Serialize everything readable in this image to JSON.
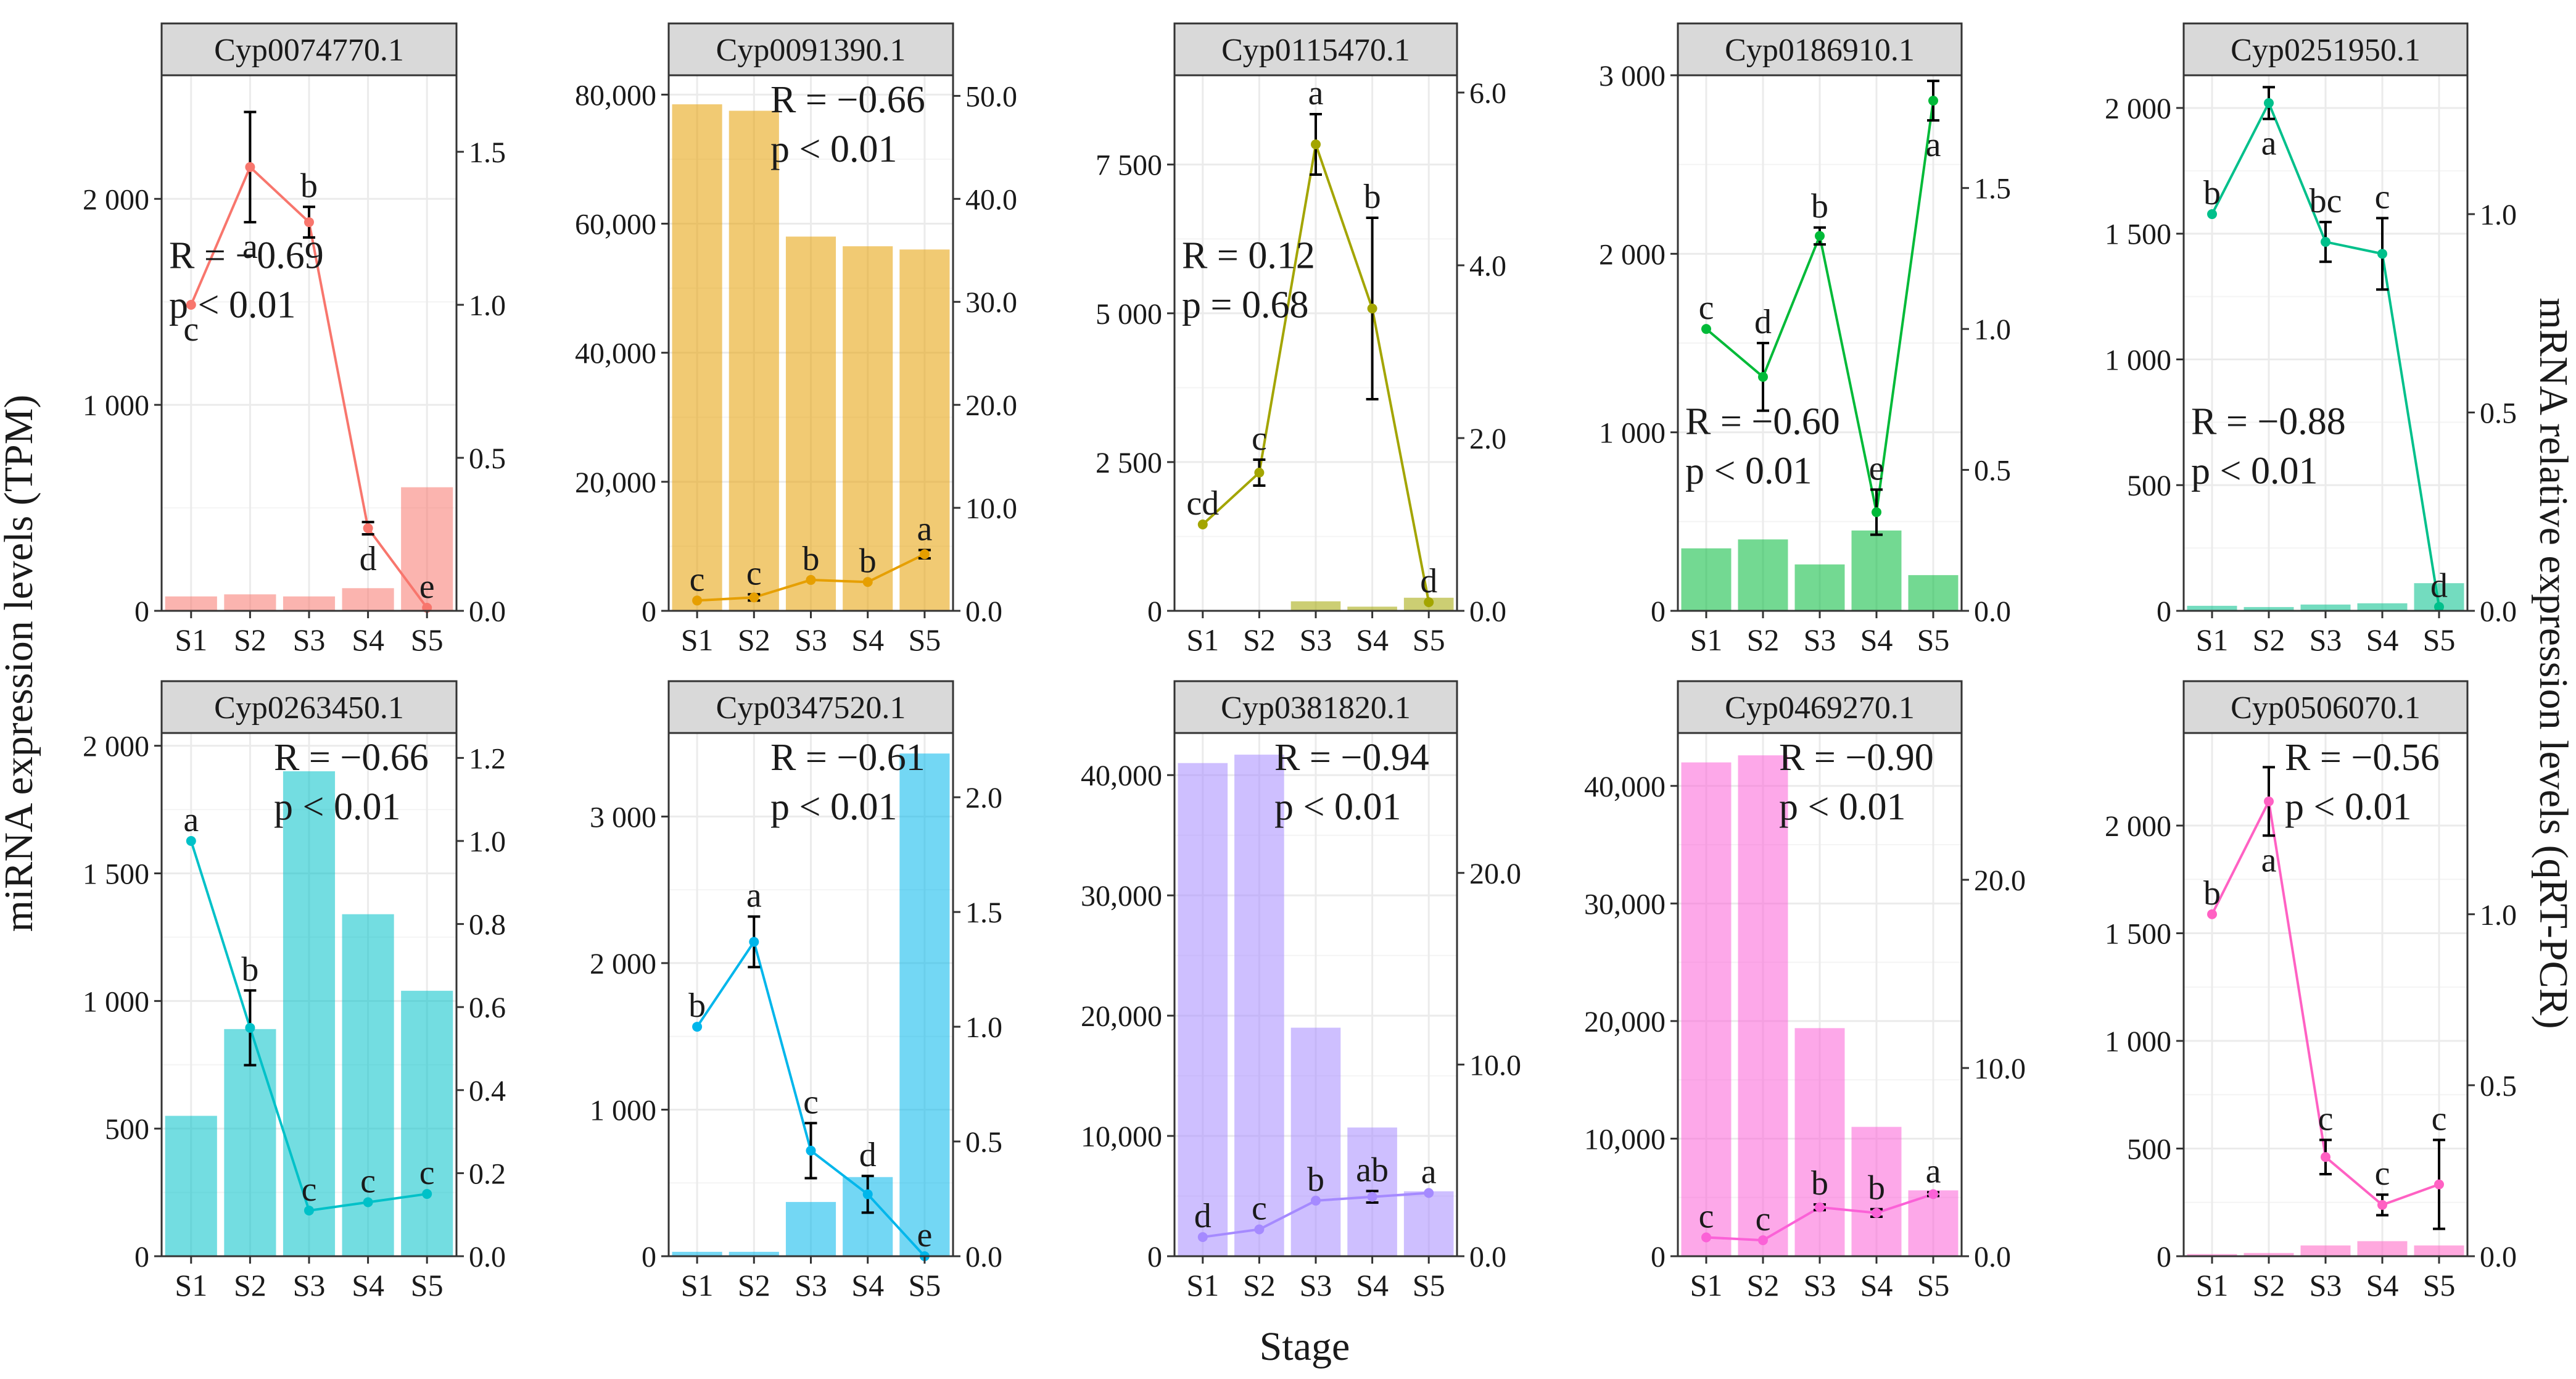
{
  "figure": {
    "ylabel_left": "miRNA expression levels (TPM)",
    "ylabel_right": "mRNA relative expression levels (qRT-PCR)",
    "xlabel": "Stage"
  },
  "chart_data": [
    {
      "type": "bar+line",
      "title": "Cyp0074770.1",
      "color": "#F8766D",
      "categories": [
        "S1",
        "S2",
        "S3",
        "S4",
        "S5"
      ],
      "bar_values": [
        70,
        80,
        70,
        110,
        600
      ],
      "left_axis": {
        "min": 0,
        "max": 2600,
        "ticks": [
          0,
          1000,
          2000
        ],
        "tick_labels": [
          "0",
          "1 000",
          "2 000"
        ]
      },
      "right_axis": {
        "min": 0,
        "max": 1.75,
        "ticks": [
          0,
          0.5,
          1.0,
          1.5
        ],
        "tick_labels": [
          "0.0",
          "0.5",
          "1.0",
          "1.5"
        ]
      },
      "line_values": [
        1.0,
        1.45,
        1.27,
        0.27,
        0.01
      ],
      "line_errors": [
        0,
        0.18,
        0.05,
        0.02,
        0
      ],
      "letters": [
        "c",
        "a",
        "b",
        "d",
        "e"
      ],
      "letter_pos": [
        "below",
        "below",
        "above",
        "below",
        "above"
      ],
      "R": "R = −0.69",
      "p": "p < 0.01",
      "stat_pos": "left-mid"
    },
    {
      "type": "bar+line",
      "title": "Cyp0091390.1",
      "color": "#E69F00",
      "categories": [
        "S1",
        "S2",
        "S3",
        "S4",
        "S5"
      ],
      "bar_values": [
        78500,
        77500,
        58000,
        56500,
        56000
      ],
      "left_axis": {
        "min": 0,
        "max": 83000,
        "ticks": [
          0,
          20000,
          40000,
          60000,
          80000
        ],
        "tick_labels": [
          "0",
          "20,000",
          "40,000",
          "60,000",
          "80,000"
        ]
      },
      "right_axis": {
        "min": 0,
        "max": 52,
        "ticks": [
          0,
          10,
          20,
          30,
          40,
          50
        ],
        "tick_labels": [
          "0.0",
          "10.0",
          "20.0",
          "30.0",
          "40.0",
          "50.0"
        ]
      },
      "line_values": [
        1.0,
        1.3,
        3.0,
        2.8,
        5.5
      ],
      "line_errors": [
        0,
        0.3,
        0,
        0,
        0.4
      ],
      "letters": [
        "c",
        "c",
        "b",
        "b",
        "a"
      ],
      "letter_pos": [
        "above",
        "above",
        "above",
        "above",
        "above"
      ],
      "R": "R = −0.66",
      "p": "p < 0.01",
      "stat_pos": "right-top"
    },
    {
      "type": "bar+line",
      "title": "Cyp0115470.1",
      "color": "#A3A500",
      "categories": [
        "S1",
        "S2",
        "S3",
        "S4",
        "S5"
      ],
      "bar_values": [
        10,
        15,
        160,
        70,
        220
      ],
      "left_axis": {
        "min": 0,
        "max": 9000,
        "ticks": [
          0,
          2500,
          5000,
          7500
        ],
        "tick_labels": [
          "0",
          "2 500",
          "5 000",
          "7 500"
        ]
      },
      "right_axis": {
        "min": 0,
        "max": 6.2,
        "ticks": [
          0,
          2.0,
          4.0,
          6.0
        ],
        "tick_labels": [
          "0.0",
          "2.0",
          "4.0",
          "6.0"
        ]
      },
      "line_values": [
        1.0,
        1.6,
        5.4,
        3.5,
        0.1
      ],
      "line_errors": [
        0,
        0.15,
        0.35,
        1.05,
        0
      ],
      "letters": [
        "cd",
        "c",
        "a",
        "b",
        "d"
      ],
      "letter_pos": [
        "above",
        "above",
        "above",
        "above",
        "above"
      ],
      "R": "R = 0.12",
      "p": "p = 0.68",
      "stat_pos": "left-mid"
    },
    {
      "type": "bar+line",
      "title": "Cyp0186910.1",
      "color": "#00BA38",
      "categories": [
        "S1",
        "S2",
        "S3",
        "S4",
        "S5"
      ],
      "bar_values": [
        350,
        400,
        260,
        450,
        200
      ],
      "left_axis": {
        "min": 0,
        "max": 3000,
        "ticks": [
          0,
          1000,
          2000,
          3000
        ],
        "tick_labels": [
          "0",
          "1 000",
          "2 000",
          "3 000"
        ]
      },
      "right_axis": {
        "min": 0,
        "max": 1.9,
        "ticks": [
          0,
          0.5,
          1.0,
          1.5
        ],
        "tick_labels": [
          "0.0",
          "0.5",
          "1.0",
          "1.5"
        ]
      },
      "line_values": [
        1.0,
        0.83,
        1.33,
        0.35,
        1.81
      ],
      "line_errors": [
        0,
        0.12,
        0.03,
        0.08,
        0.07
      ],
      "letters": [
        "c",
        "d",
        "b",
        "e",
        "a"
      ],
      "letter_pos": [
        "above",
        "above",
        "above",
        "above",
        "below"
      ],
      "R": "R = −0.60",
      "p": "p < 0.01",
      "stat_pos": "left-low"
    },
    {
      "type": "bar+line",
      "title": "Cyp0251950.1",
      "color": "#00C08B",
      "categories": [
        "S1",
        "S2",
        "S3",
        "S4",
        "S5"
      ],
      "bar_values": [
        20,
        15,
        25,
        30,
        110
      ],
      "left_axis": {
        "min": 0,
        "max": 2130,
        "ticks": [
          0,
          500,
          1000,
          1500,
          2000
        ],
        "tick_labels": [
          "0",
          "500",
          "1 000",
          "1 500",
          "2 000"
        ]
      },
      "right_axis": {
        "min": 0,
        "max": 1.35,
        "ticks": [
          0,
          0.5,
          1.0
        ],
        "tick_labels": [
          "0.0",
          "0.5",
          "1.0"
        ]
      },
      "line_values": [
        1.0,
        1.28,
        0.93,
        0.9,
        0.01
      ],
      "line_errors": [
        0,
        0.04,
        0.05,
        0.09,
        0
      ],
      "letters": [
        "b",
        "a",
        "bc",
        "c",
        "d"
      ],
      "letter_pos": [
        "above",
        "below",
        "above",
        "above",
        "above"
      ],
      "R": "R = −0.88",
      "p": "p < 0.01",
      "stat_pos": "left-low"
    },
    {
      "type": "bar+line",
      "title": "Cyp0263450.1",
      "color": "#00C1C8",
      "categories": [
        "S1",
        "S2",
        "S3",
        "S4",
        "S5"
      ],
      "bar_values": [
        550,
        890,
        1900,
        1340,
        1040
      ],
      "left_axis": {
        "min": 0,
        "max": 2050,
        "ticks": [
          0,
          500,
          1000,
          1500,
          2000
        ],
        "tick_labels": [
          "0",
          "500",
          "1 000",
          "1 500",
          "2 000"
        ]
      },
      "right_axis": {
        "min": 0,
        "max": 1.26,
        "ticks": [
          0,
          0.2,
          0.4,
          0.6,
          0.8,
          1.0,
          1.2
        ],
        "tick_labels": [
          "0.0",
          "0.2",
          "0.4",
          "0.6",
          "0.8",
          "1.0",
          "1.2"
        ]
      },
      "line_values": [
        1.0,
        0.55,
        0.11,
        0.13,
        0.15
      ],
      "line_errors": [
        0,
        0.09,
        0,
        0,
        0
      ],
      "letters": [
        "a",
        "b",
        "c",
        "c",
        "c"
      ],
      "letter_pos": [
        "above",
        "above",
        "above",
        "above",
        "above"
      ],
      "R": "R = −0.66",
      "p": "p < 0.01",
      "stat_pos": "right-top"
    },
    {
      "type": "bar+line",
      "title": "Cyp0347520.1",
      "color": "#00B6EB",
      "categories": [
        "S1",
        "S2",
        "S3",
        "S4",
        "S5"
      ],
      "bar_values": [
        30,
        30,
        370,
        540,
        3430
      ],
      "left_axis": {
        "min": 0,
        "max": 3570,
        "ticks": [
          0,
          1000,
          2000,
          3000
        ],
        "tick_labels": [
          "0",
          "1 000",
          "2 000",
          "3 000"
        ]
      },
      "right_axis": {
        "min": 0,
        "max": 2.28,
        "ticks": [
          0,
          0.5,
          1.0,
          1.5,
          2.0
        ],
        "tick_labels": [
          "0.0",
          "0.5",
          "1.0",
          "1.5",
          "2.0"
        ]
      },
      "line_values": [
        1.0,
        1.37,
        0.46,
        0.27,
        0.0
      ],
      "line_errors": [
        0,
        0.11,
        0.12,
        0.08,
        0
      ],
      "letters": [
        "b",
        "a",
        "c",
        "d",
        "e"
      ],
      "letter_pos": [
        "above",
        "above",
        "above",
        "above",
        "above"
      ],
      "R": "R = −0.61",
      "p": "p < 0.01",
      "stat_pos": "right-top"
    },
    {
      "type": "bar+line",
      "title": "Cyp0381820.1",
      "color": "#A58AFF",
      "categories": [
        "S1",
        "S2",
        "S3",
        "S4",
        "S5"
      ],
      "bar_values": [
        41000,
        41700,
        19000,
        10700,
        5400
      ],
      "left_axis": {
        "min": 0,
        "max": 43500,
        "ticks": [
          0,
          10000,
          20000,
          30000,
          40000
        ],
        "tick_labels": [
          "0",
          "10,000",
          "20,000",
          "30,000",
          "40,000"
        ]
      },
      "right_axis": {
        "min": 0,
        "max": 27.3,
        "ticks": [
          0,
          10,
          20
        ],
        "tick_labels": [
          "0.0",
          "10.0",
          "20.0"
        ]
      },
      "line_values": [
        1.0,
        1.4,
        2.9,
        3.1,
        3.3
      ],
      "line_errors": [
        0,
        0,
        0,
        0.3,
        0
      ],
      "letters": [
        "d",
        "c",
        "b",
        "ab",
        "a"
      ],
      "letter_pos": [
        "above",
        "above",
        "above",
        "above",
        "above"
      ],
      "R": "R = −0.94",
      "p": "p < 0.01",
      "stat_pos": "right-top"
    },
    {
      "type": "bar+line",
      "title": "Cyp0469270.1",
      "color": "#FB61D7",
      "categories": [
        "S1",
        "S2",
        "S3",
        "S4",
        "S5"
      ],
      "bar_values": [
        42000,
        42600,
        19400,
        11000,
        5600
      ],
      "left_axis": {
        "min": 0,
        "max": 44500,
        "ticks": [
          0,
          10000,
          20000,
          30000,
          40000
        ],
        "tick_labels": [
          "0",
          "10,000",
          "20,000",
          "30,000",
          "40,000"
        ]
      },
      "right_axis": {
        "min": 0,
        "max": 27.8,
        "ticks": [
          0,
          10,
          20
        ],
        "tick_labels": [
          "0.0",
          "10.0",
          "20.0"
        ]
      },
      "line_values": [
        1.0,
        0.85,
        2.6,
        2.3,
        3.3
      ],
      "line_errors": [
        0,
        0,
        0.15,
        0.2,
        0.1
      ],
      "letters": [
        "c",
        "c",
        "b",
        "b",
        "a"
      ],
      "letter_pos": [
        "above",
        "above",
        "above",
        "above",
        "above"
      ],
      "R": "R = −0.90",
      "p": "p < 0.01",
      "stat_pos": "right-top"
    },
    {
      "type": "bar+line",
      "title": "Cyp0506070.1",
      "color": "#FF61C3",
      "categories": [
        "S1",
        "S2",
        "S3",
        "S4",
        "S5"
      ],
      "bar_values": [
        10,
        15,
        50,
        70,
        50
      ],
      "left_axis": {
        "min": 0,
        "max": 2430,
        "ticks": [
          0,
          500,
          1000,
          1500,
          2000
        ],
        "tick_labels": [
          "0",
          "500",
          "1 000",
          "1 500",
          "2 000"
        ]
      },
      "right_axis": {
        "min": 0,
        "max": 1.53,
        "ticks": [
          0,
          0.5,
          1.0
        ],
        "tick_labels": [
          "0.0",
          "0.5",
          "1.0"
        ]
      },
      "line_values": [
        1.0,
        1.33,
        0.29,
        0.15,
        0.21
      ],
      "line_errors": [
        0,
        0.1,
        0.05,
        0.03,
        0.13
      ],
      "letters": [
        "b",
        "a",
        "c",
        "c",
        "c"
      ],
      "letter_pos": [
        "above",
        "below",
        "above",
        "above",
        "above"
      ],
      "R": "R = −0.56",
      "p": "p < 0.01",
      "stat_pos": "right-top"
    }
  ]
}
